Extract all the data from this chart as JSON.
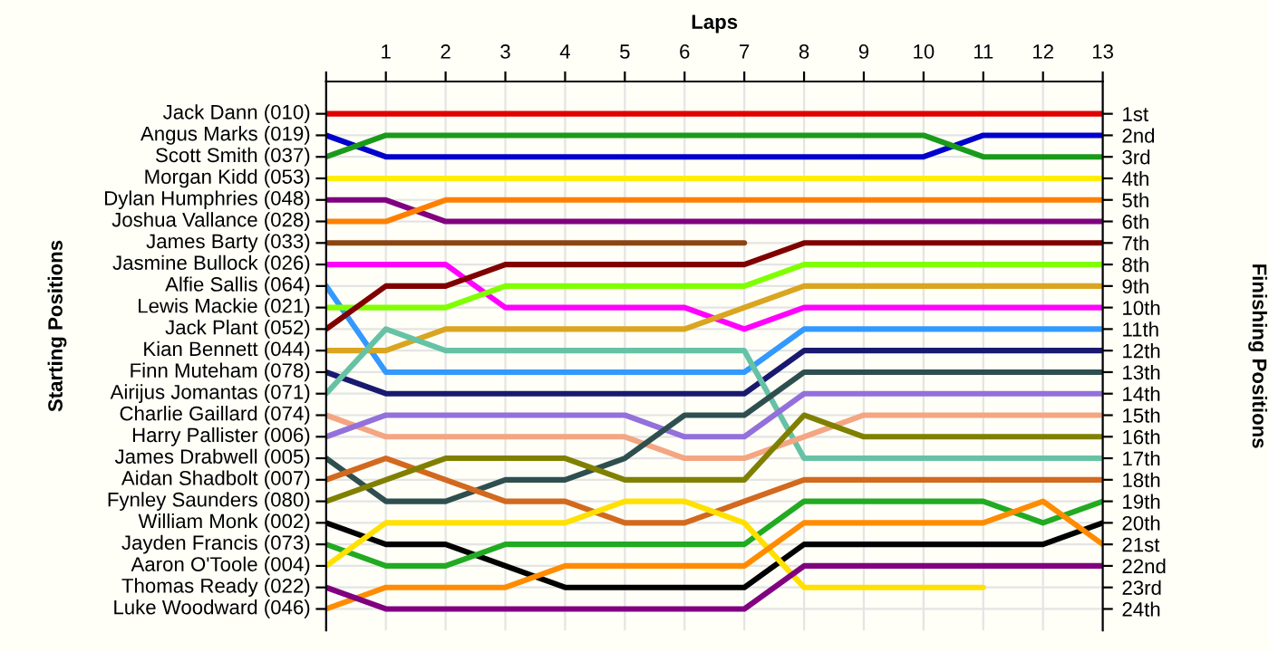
{
  "chart_data": {
    "type": "line",
    "xlabel": "Laps",
    "ylabel": "Finishing Positions",
    "annotations": [
      "Starting Positions"
    ],
    "x": [
      0,
      1,
      2,
      3,
      4,
      5,
      6,
      7,
      8,
      9,
      10,
      11,
      12,
      13
    ],
    "xlim": [
      0,
      13
    ],
    "xticks": [
      {
        "value": 0,
        "label": null
      },
      1,
      2,
      3,
      4,
      5,
      6,
      7,
      8,
      9,
      10,
      11,
      12,
      13
    ],
    "y_categories": [
      "Jack Dann (010)",
      "Angus Marks (019)",
      "Scott Smith (037)",
      "Morgan Kidd (053)",
      "Dylan Humphries (048)",
      "Joshua Vallance (028)",
      "James Barty (033)",
      "Jasmine Bullock (026)",
      "Alfie Sallis (064)",
      "Lewis Mackie (021)",
      "Jack Plant (052)",
      "Kian Bennett (044)",
      "Finn Muteham (078)",
      "Airijus Jomantas (071)",
      "Charlie Gaillard (074)",
      "Harry Pallister (006)",
      "James Drabwell (005)",
      "Aidan Shadbolt (007)",
      "Fynley Saunders (080)",
      "William Monk (002)",
      "Jayden Francis (073)",
      "Aaron O'Toole (004)",
      "Thomas Ready (022)",
      "Luke Woodward (046)"
    ],
    "ylim": [
      25,
      -0.5
    ],
    "yticks": [
      {
        "value": 1,
        "label": "1st"
      },
      {
        "value": 2,
        "label": "2nd"
      },
      {
        "value": 3,
        "label": "3rd"
      },
      {
        "value": 4,
        "label": "4th"
      },
      {
        "value": 5,
        "label": "5th"
      },
      {
        "value": 6,
        "label": "6th"
      },
      {
        "value": 7,
        "label": "7th"
      },
      {
        "value": 8,
        "label": "8th"
      },
      {
        "value": 9,
        "label": "9th"
      },
      {
        "value": 10,
        "label": "10th"
      },
      {
        "value": 11,
        "label": "11th"
      },
      {
        "value": 12,
        "label": "12th"
      },
      {
        "value": 13,
        "label": "13th"
      },
      {
        "value": 14,
        "label": "14th"
      },
      {
        "value": 15,
        "label": "15th"
      },
      {
        "value": 16,
        "label": "16th"
      },
      {
        "value": 17,
        "label": "17th"
      },
      {
        "value": 18,
        "label": "18th"
      },
      {
        "value": 19,
        "label": "19th"
      },
      {
        "value": 20,
        "label": "20th"
      },
      {
        "value": 21,
        "label": "21st"
      },
      {
        "value": 22,
        "label": "22nd"
      },
      {
        "value": 23,
        "label": "23rd"
      },
      {
        "value": 24,
        "label": "24th"
      }
    ],
    "grid": true,
    "line_style": "solid",
    "series": [
      {
        "color": "#e00000",
        "values": [
          1,
          1,
          1,
          1,
          1,
          1,
          1,
          1,
          1,
          1,
          1,
          1,
          1,
          1
        ]
      },
      {
        "color": "#0000cc",
        "values": [
          2,
          3,
          3,
          3,
          3,
          3,
          3,
          3,
          3,
          3,
          3,
          2,
          2,
          2
        ]
      },
      {
        "color": "#1a9a1a",
        "values": [
          3,
          2,
          2,
          2,
          2,
          2,
          2,
          2,
          2,
          2,
          2,
          3,
          3,
          3
        ]
      },
      {
        "color": "#ffee00",
        "values": [
          4,
          4,
          4,
          4,
          4,
          4,
          4,
          4,
          4,
          4,
          4,
          4,
          4,
          4
        ]
      },
      {
        "color": "#800080",
        "values": [
          5,
          5,
          6,
          6,
          6,
          6,
          6,
          6,
          6,
          6,
          6,
          6,
          6,
          6
        ]
      },
      {
        "color": "#ff8000",
        "values": [
          6,
          6,
          5,
          5,
          5,
          5,
          5,
          5,
          5,
          5,
          5,
          5,
          5,
          5
        ]
      },
      {
        "color": "#8b4513",
        "values": [
          7,
          7,
          7,
          7,
          7,
          7,
          7,
          7,
          null,
          null,
          null,
          null,
          null,
          null
        ]
      },
      {
        "color": "#ff00ff",
        "values": [
          8,
          8,
          8,
          10,
          10,
          10,
          10,
          11,
          10,
          10,
          10,
          10,
          10,
          10
        ]
      },
      {
        "color": "#3399ff",
        "values": [
          9,
          13,
          13,
          13,
          13,
          13,
          13,
          13,
          11,
          11,
          11,
          11,
          11,
          11
        ]
      },
      {
        "color": "#80ff00",
        "values": [
          10,
          10,
          10,
          9,
          9,
          9,
          9,
          9,
          8,
          8,
          8,
          8,
          8,
          8
        ]
      },
      {
        "color": "#800000",
        "values": [
          11,
          9,
          9,
          8,
          8,
          8,
          8,
          8,
          7,
          7,
          7,
          7,
          7,
          7
        ]
      },
      {
        "color": "#daa520",
        "values": [
          12,
          12,
          11,
          11,
          11,
          11,
          11,
          10,
          9,
          9,
          9,
          9,
          9,
          9
        ]
      },
      {
        "color": "#191970",
        "values": [
          13,
          14,
          14,
          14,
          14,
          14,
          14,
          14,
          12,
          12,
          12,
          12,
          12,
          12
        ]
      },
      {
        "color": "#66c2a5",
        "values": [
          14,
          11,
          12,
          12,
          12,
          12,
          12,
          12,
          17,
          17,
          17,
          17,
          17,
          17
        ]
      },
      {
        "color": "#f4a582",
        "values": [
          15,
          16,
          16,
          16,
          16,
          16,
          17,
          17,
          16,
          15,
          15,
          15,
          15,
          15
        ]
      },
      {
        "color": "#9370db",
        "values": [
          16,
          15,
          15,
          15,
          15,
          15,
          16,
          16,
          14,
          14,
          14,
          14,
          14,
          14
        ]
      },
      {
        "color": "#2f4f4f",
        "values": [
          17,
          19,
          19,
          18,
          18,
          17,
          15,
          15,
          13,
          13,
          13,
          13,
          13,
          13
        ]
      },
      {
        "color": "#d2691e",
        "values": [
          18,
          17,
          18,
          19,
          19,
          20,
          20,
          19,
          18,
          18,
          18,
          18,
          18,
          18
        ]
      },
      {
        "color": "#808000",
        "values": [
          19,
          18,
          17,
          17,
          17,
          18,
          18,
          18,
          15,
          16,
          16,
          16,
          16,
          16
        ]
      },
      {
        "color": "#000000",
        "values": [
          20,
          21,
          21,
          22,
          23,
          23,
          23,
          23,
          21,
          21,
          21,
          21,
          21,
          20
        ]
      },
      {
        "color": "#22aa22",
        "values": [
          21,
          22,
          22,
          21,
          21,
          21,
          21,
          21,
          19,
          19,
          19,
          19,
          20,
          19
        ]
      },
      {
        "color": "#ffe000",
        "values": [
          22,
          20,
          20,
          20,
          20,
          19,
          19,
          20,
          23,
          23,
          23,
          23,
          null,
          null
        ]
      },
      {
        "color": "#ff8c00",
        "values": [
          24,
          23,
          23,
          23,
          22,
          22,
          22,
          22,
          20,
          20,
          20,
          20,
          19,
          21
        ]
      },
      {
        "color": "#800080",
        "values": [
          23,
          24,
          24,
          24,
          24,
          24,
          24,
          24,
          22,
          22,
          22,
          22,
          22,
          22
        ]
      }
    ]
  }
}
